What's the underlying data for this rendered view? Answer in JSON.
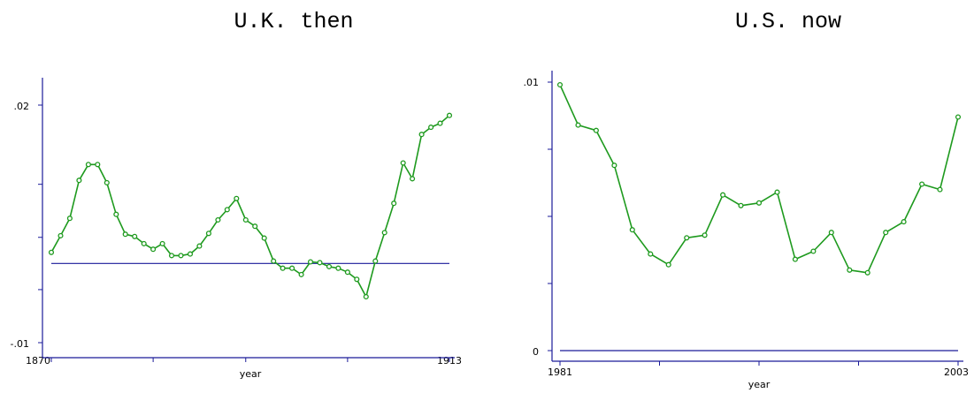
{
  "colors": {
    "axis": "#1a1a99",
    "series": "#1e9a1e",
    "text": "#000000",
    "background": "#ffffff"
  },
  "chart_data": [
    {
      "type": "line",
      "title": "U.K. then",
      "xlabel": "year",
      "ylabel": "",
      "xlim": [
        1870,
        1913
      ],
      "ylim": [
        -0.01,
        0.02
      ],
      "x_tick_labels": [
        "1870",
        "1913"
      ],
      "y_tick_labels": [
        ".02",
        "-.01"
      ],
      "x_tick_values": [
        1870,
        1881,
        1891,
        1902,
        1913
      ],
      "y_tick_values": [
        -0.01,
        -0.0033,
        0.0033,
        0.01,
        0.02
      ],
      "reference_line": 0.0,
      "grid": false,
      "legend": "none",
      "x": [
        1870,
        1871,
        1872,
        1873,
        1874,
        1875,
        1876,
        1877,
        1878,
        1879,
        1880,
        1881,
        1882,
        1883,
        1884,
        1885,
        1886,
        1887,
        1888,
        1889,
        1890,
        1891,
        1892,
        1893,
        1894,
        1895,
        1896,
        1897,
        1898,
        1899,
        1900,
        1901,
        1902,
        1903,
        1904,
        1905,
        1906,
        1907,
        1908,
        1909,
        1910,
        1911,
        1912,
        1913
      ],
      "y": [
        0.0014,
        0.0035,
        0.0057,
        0.0105,
        0.0125,
        0.0125,
        0.0102,
        0.0062,
        0.0037,
        0.0034,
        0.0025,
        0.0018,
        0.0025,
        0.001,
        0.001,
        0.0012,
        0.0022,
        0.0038,
        0.0055,
        0.0068,
        0.0082,
        0.0055,
        0.0047,
        0.0032,
        0.0003,
        -0.0006,
        -0.0006,
        -0.0014,
        0.0002,
        0.0001,
        -0.0004,
        -0.0006,
        -0.0011,
        -0.002,
        -0.0042,
        0.0003,
        0.0039,
        0.0076,
        0.0127,
        0.0107,
        0.0163,
        0.0172,
        0.0177,
        0.0187
      ]
    },
    {
      "type": "line",
      "title": "U.S. now",
      "xlabel": "year",
      "ylabel": "",
      "xlim": [
        1981,
        2003
      ],
      "ylim": [
        0,
        0.01
      ],
      "x_tick_labels": [
        "1981",
        "2003"
      ],
      "y_tick_labels": [
        ".01",
        "0"
      ],
      "x_tick_values": [
        1981,
        1986.5,
        1992,
        1997.5,
        2003
      ],
      "y_tick_values": [
        0,
        0.0025,
        0.005,
        0.0075,
        0.01
      ],
      "reference_line": 0.0,
      "grid": false,
      "legend": "none",
      "x": [
        1981,
        1982,
        1983,
        1984,
        1985,
        1986,
        1987,
        1988,
        1989,
        1990,
        1991,
        1992,
        1993,
        1994,
        1995,
        1996,
        1997,
        1998,
        1999,
        2000,
        2001,
        2002,
        2003
      ],
      "y": [
        0.0099,
        0.0084,
        0.0082,
        0.0069,
        0.0045,
        0.0036,
        0.0032,
        0.0042,
        0.0043,
        0.0058,
        0.0054,
        0.0055,
        0.0059,
        0.0034,
        0.0037,
        0.0044,
        0.003,
        0.0029,
        0.0044,
        0.0048,
        0.0062,
        0.006,
        0.0087
      ]
    }
  ]
}
